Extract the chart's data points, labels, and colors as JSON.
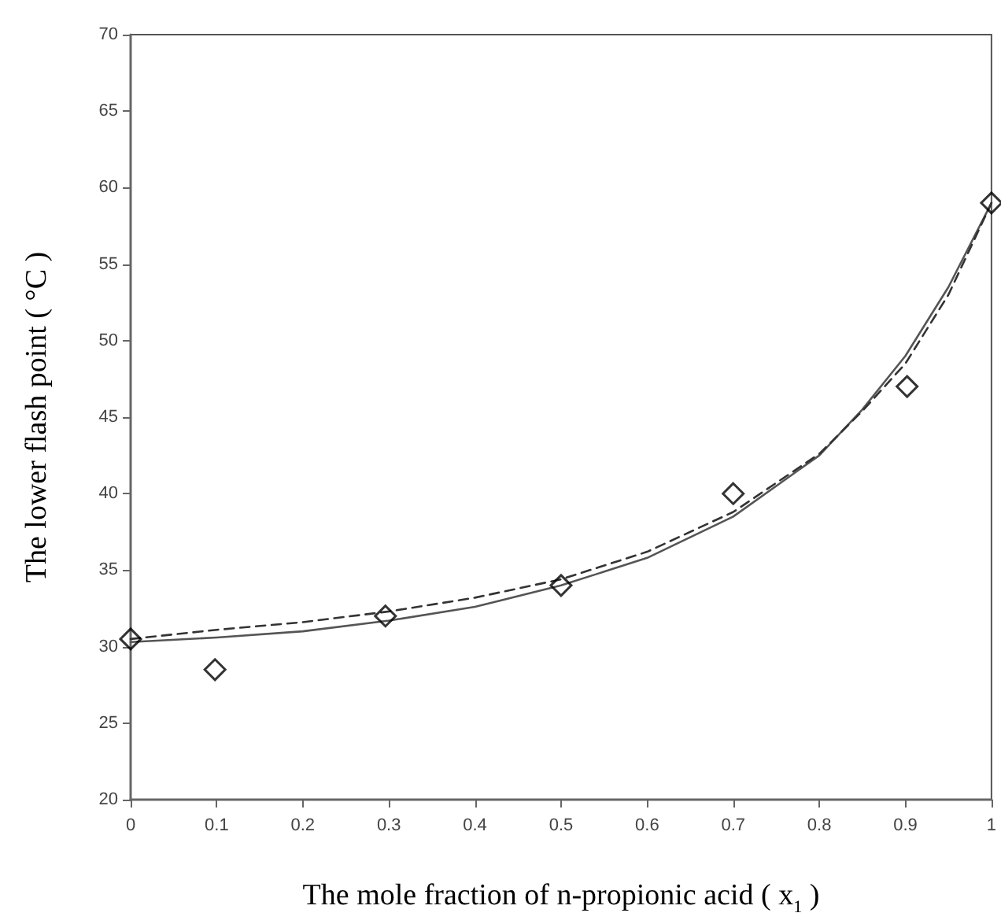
{
  "chart_data": {
    "type": "scatter",
    "xlabel": "The mole fraction of n-propionic acid ( x$_{1}$ )",
    "ylabel": "The lower flash point ( °C )",
    "xlim": [
      0,
      1
    ],
    "xticks": [
      0,
      0.1,
      0.2,
      0.3,
      0.4,
      0.5,
      0.6,
      0.7,
      0.8,
      0.9,
      1
    ],
    "ylim": [
      20,
      70
    ],
    "yticks": [
      20,
      25,
      30,
      35,
      40,
      45,
      50,
      55,
      60,
      65,
      70
    ],
    "grid": false,
    "series": [
      {
        "marker": "diamond",
        "color": "#000000",
        "x": [
          0,
          0.098,
          0.296,
          0.5,
          0.7,
          0.902,
          1
        ],
        "values": [
          30.5,
          28.5,
          32,
          34,
          40,
          47,
          59
        ]
      },
      {
        "type": "line",
        "marker": "none",
        "line_style": "solid",
        "color": "#555555",
        "x": [
          0,
          0.1,
          0.2,
          0.3,
          0.4,
          0.5,
          0.6,
          0.7,
          0.8,
          0.85,
          0.9,
          0.95,
          1
        ],
        "values": [
          30.3,
          30.6,
          31.0,
          31.7,
          32.6,
          34.0,
          35.8,
          38.5,
          42.5,
          45.5,
          49,
          53.5,
          59
        ]
      },
      {
        "type": "line",
        "marker": "none",
        "line_style": "dashed",
        "color": "#333333",
        "x": [
          0,
          0.1,
          0.2,
          0.3,
          0.4,
          0.5,
          0.6,
          0.7,
          0.8,
          0.85,
          0.9,
          0.95,
          1
        ],
        "values": [
          30.5,
          31.1,
          31.6,
          32.3,
          33.2,
          34.4,
          36.2,
          38.8,
          42.6,
          45.4,
          48.5,
          53,
          59
        ]
      }
    ]
  }
}
